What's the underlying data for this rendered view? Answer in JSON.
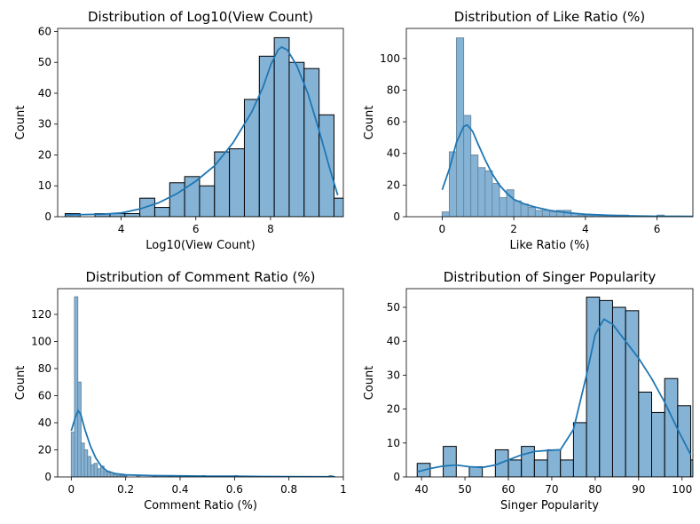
{
  "chart_data": [
    {
      "type": "bar",
      "title": "Distribution of Log10(View Count)",
      "xlabel": "Log10(View Count)",
      "ylabel": "Count",
      "xlim": [
        2.3,
        9.95
      ],
      "ylim": [
        0,
        61
      ],
      "xticks": [
        4,
        6,
        8,
        10
      ],
      "yticks": [
        0,
        10,
        20,
        30,
        40,
        50,
        60
      ],
      "bins": [
        {
          "x0": 2.5,
          "x1": 2.9,
          "count": 1
        },
        {
          "x0": 2.9,
          "x1": 3.3,
          "count": 0
        },
        {
          "x0": 3.3,
          "x1": 3.7,
          "count": 1
        },
        {
          "x0": 3.7,
          "x1": 4.1,
          "count": 1
        },
        {
          "x0": 4.1,
          "x1": 4.5,
          "count": 1
        },
        {
          "x0": 4.5,
          "x1": 4.9,
          "count": 6
        },
        {
          "x0": 4.9,
          "x1": 5.3,
          "count": 3
        },
        {
          "x0": 5.3,
          "x1": 5.7,
          "count": 11
        },
        {
          "x0": 5.7,
          "x1": 6.1,
          "count": 13
        },
        {
          "x0": 6.1,
          "x1": 6.5,
          "count": 10
        },
        {
          "x0": 6.5,
          "x1": 6.9,
          "count": 21
        },
        {
          "x0": 6.9,
          "x1": 7.3,
          "count": 22
        },
        {
          "x0": 7.3,
          "x1": 7.7,
          "count": 38
        },
        {
          "x0": 7.7,
          "x1": 8.1,
          "count": 52
        },
        {
          "x0": 8.1,
          "x1": 8.5,
          "count": 58
        },
        {
          "x0": 8.5,
          "x1": 8.9,
          "count": 50
        },
        {
          "x0": 8.9,
          "x1": 9.3,
          "count": 48
        },
        {
          "x0": 9.3,
          "x1": 9.7,
          "count": 33
        },
        {
          "x0": 9.7,
          "x1": 10.1,
          "count": 6
        }
      ],
      "kde": [
        [
          2.5,
          0.6
        ],
        [
          3.0,
          0.7
        ],
        [
          3.5,
          0.8
        ],
        [
          4.0,
          1.2
        ],
        [
          4.5,
          2.5
        ],
        [
          5.0,
          4.5
        ],
        [
          5.5,
          7.5
        ],
        [
          6.0,
          11.5
        ],
        [
          6.5,
          16.5
        ],
        [
          7.0,
          24
        ],
        [
          7.5,
          34
        ],
        [
          7.8,
          42
        ],
        [
          8.0,
          49
        ],
        [
          8.2,
          54
        ],
        [
          8.3,
          55
        ],
        [
          8.45,
          54
        ],
        [
          8.7,
          49
        ],
        [
          9.0,
          40
        ],
        [
          9.3,
          28
        ],
        [
          9.6,
          15
        ],
        [
          9.8,
          7
        ]
      ],
      "colors": {
        "bar_fill": "#85b3d6",
        "bar_edge": "#000000",
        "kde": "#1f77b4"
      }
    },
    {
      "type": "bar",
      "title": "Distribution of Like Ratio (%)",
      "xlabel": "Like Ratio (%)",
      "ylabel": "Count",
      "xlim": [
        -1.0,
        7.0
      ],
      "ylim": [
        0,
        119
      ],
      "xticks": [
        0,
        2,
        4,
        6
      ],
      "yticks": [
        0,
        20,
        40,
        60,
        80,
        100
      ],
      "bins": [
        {
          "x0": 0.0,
          "x1": 0.2,
          "count": 3
        },
        {
          "x0": 0.2,
          "x1": 0.4,
          "count": 41
        },
        {
          "x0": 0.4,
          "x1": 0.6,
          "count": 113
        },
        {
          "x0": 0.6,
          "x1": 0.8,
          "count": 64
        },
        {
          "x0": 0.8,
          "x1": 1.0,
          "count": 39
        },
        {
          "x0": 1.0,
          "x1": 1.2,
          "count": 31
        },
        {
          "x0": 1.2,
          "x1": 1.4,
          "count": 29
        },
        {
          "x0": 1.4,
          "x1": 1.6,
          "count": 21
        },
        {
          "x0": 1.6,
          "x1": 1.8,
          "count": 12
        },
        {
          "x0": 1.8,
          "x1": 2.0,
          "count": 17
        },
        {
          "x0": 2.0,
          "x1": 2.2,
          "count": 10
        },
        {
          "x0": 2.2,
          "x1": 2.4,
          "count": 8
        },
        {
          "x0": 2.4,
          "x1": 2.6,
          "count": 6
        },
        {
          "x0": 2.6,
          "x1": 2.8,
          "count": 4
        },
        {
          "x0": 2.8,
          "x1": 3.0,
          "count": 4
        },
        {
          "x0": 3.0,
          "x1": 3.2,
          "count": 3
        },
        {
          "x0": 3.2,
          "x1": 3.4,
          "count": 4
        },
        {
          "x0": 3.4,
          "x1": 3.6,
          "count": 4
        },
        {
          "x0": 3.6,
          "x1": 3.8,
          "count": 2
        },
        {
          "x0": 3.8,
          "x1": 4.0,
          "count": 1
        },
        {
          "x0": 4.0,
          "x1": 4.2,
          "count": 1
        },
        {
          "x0": 4.2,
          "x1": 4.4,
          "count": 1
        },
        {
          "x0": 4.4,
          "x1": 4.6,
          "count": 1
        },
        {
          "x0": 4.6,
          "x1": 4.8,
          "count": 1
        },
        {
          "x0": 4.8,
          "x1": 5.0,
          "count": 1
        },
        {
          "x0": 5.0,
          "x1": 5.2,
          "count": 1
        },
        {
          "x0": 5.2,
          "x1": 5.4,
          "count": 0
        },
        {
          "x0": 5.4,
          "x1": 5.6,
          "count": 0
        },
        {
          "x0": 5.6,
          "x1": 5.8,
          "count": 0
        },
        {
          "x0": 5.8,
          "x1": 6.0,
          "count": 0
        },
        {
          "x0": 6.0,
          "x1": 6.2,
          "count": 1
        }
      ],
      "kde": [
        [
          0.0,
          17
        ],
        [
          0.2,
          30
        ],
        [
          0.4,
          47
        ],
        [
          0.6,
          57
        ],
        [
          0.7,
          58
        ],
        [
          0.85,
          54
        ],
        [
          1.0,
          46
        ],
        [
          1.2,
          36
        ],
        [
          1.4,
          27
        ],
        [
          1.6,
          20
        ],
        [
          1.8,
          15
        ],
        [
          2.0,
          11
        ],
        [
          2.3,
          8
        ],
        [
          2.6,
          6
        ],
        [
          3.0,
          4
        ],
        [
          3.5,
          2.5
        ],
        [
          4.0,
          1.5
        ],
        [
          4.5,
          1
        ],
        [
          5.0,
          0.6
        ],
        [
          6.0,
          0.3
        ],
        [
          7.0,
          0.2
        ]
      ],
      "colors": {
        "bar_fill": "#85b3d6",
        "bar_edge": "#6a8aa0",
        "kde": "#1f77b4"
      }
    },
    {
      "type": "bar",
      "title": "Distribution of Comment Ratio (%)",
      "xlabel": "Comment Ratio (%)",
      "ylabel": "Count",
      "xlim": [
        -0.05,
        1.0
      ],
      "ylim": [
        0,
        139
      ],
      "xticks": [
        0.0,
        0.2,
        0.4,
        0.6,
        0.8,
        1.0
      ],
      "yticks": [
        0,
        20,
        40,
        60,
        80,
        100,
        120
      ],
      "bins": [
        {
          "x0": 0.0,
          "x1": 0.012,
          "count": 33
        },
        {
          "x0": 0.012,
          "x1": 0.024,
          "count": 133
        },
        {
          "x0": 0.024,
          "x1": 0.036,
          "count": 70
        },
        {
          "x0": 0.036,
          "x1": 0.048,
          "count": 25
        },
        {
          "x0": 0.048,
          "x1": 0.06,
          "count": 20
        },
        {
          "x0": 0.06,
          "x1": 0.072,
          "count": 15
        },
        {
          "x0": 0.072,
          "x1": 0.084,
          "count": 9
        },
        {
          "x0": 0.084,
          "x1": 0.096,
          "count": 10
        },
        {
          "x0": 0.096,
          "x1": 0.108,
          "count": 6
        },
        {
          "x0": 0.108,
          "x1": 0.12,
          "count": 8
        },
        {
          "x0": 0.12,
          "x1": 0.132,
          "count": 4
        },
        {
          "x0": 0.132,
          "x1": 0.144,
          "count": 3
        },
        {
          "x0": 0.144,
          "x1": 0.156,
          "count": 2
        },
        {
          "x0": 0.156,
          "x1": 0.168,
          "count": 2
        },
        {
          "x0": 0.168,
          "x1": 0.18,
          "count": 1
        },
        {
          "x0": 0.18,
          "x1": 0.192,
          "count": 1
        },
        {
          "x0": 0.192,
          "x1": 0.204,
          "count": 1
        },
        {
          "x0": 0.24,
          "x1": 0.252,
          "count": 1
        },
        {
          "x0": 0.3,
          "x1": 0.312,
          "count": 1
        },
        {
          "x0": 0.36,
          "x1": 0.372,
          "count": 1
        },
        {
          "x0": 0.42,
          "x1": 0.432,
          "count": 1
        },
        {
          "x0": 0.48,
          "x1": 0.492,
          "count": 1
        },
        {
          "x0": 0.6,
          "x1": 0.612,
          "count": 1
        },
        {
          "x0": 0.948,
          "x1": 0.96,
          "count": 1
        }
      ],
      "kde": [
        [
          0.0,
          34
        ],
        [
          0.015,
          44
        ],
        [
          0.025,
          49
        ],
        [
          0.035,
          46
        ],
        [
          0.05,
          35
        ],
        [
          0.07,
          23
        ],
        [
          0.09,
          14
        ],
        [
          0.11,
          8
        ],
        [
          0.13,
          4.5
        ],
        [
          0.16,
          2.5
        ],
        [
          0.2,
          1.5
        ],
        [
          0.3,
          1
        ],
        [
          0.4,
          0.8
        ],
        [
          0.5,
          0.6
        ],
        [
          0.6,
          0.5
        ],
        [
          0.7,
          0.3
        ],
        [
          0.8,
          0.2
        ],
        [
          0.97,
          0.1
        ]
      ],
      "colors": {
        "bar_fill": "#85b3d6",
        "bar_edge": "#6a8aa0",
        "kde": "#1f77b4"
      }
    },
    {
      "type": "bar",
      "title": "Distribution of Singer Popularity",
      "xlabel": "Singer Popularity",
      "ylabel": "Count",
      "xlim": [
        36.5,
        102.5
      ],
      "ylim": [
        0,
        55.5
      ],
      "xticks": [
        40,
        50,
        60,
        70,
        80,
        90,
        100
      ],
      "yticks": [
        0,
        10,
        20,
        30,
        40,
        50
      ],
      "bins": [
        {
          "x0": 39.0,
          "x1": 42.0,
          "count": 4
        },
        {
          "x0": 42.0,
          "x1": 45.0,
          "count": 0
        },
        {
          "x0": 45.0,
          "x1": 48.0,
          "count": 9
        },
        {
          "x0": 48.0,
          "x1": 51.0,
          "count": 0
        },
        {
          "x0": 51.0,
          "x1": 54.0,
          "count": 3
        },
        {
          "x0": 54.0,
          "x1": 57.0,
          "count": 0
        },
        {
          "x0": 57.0,
          "x1": 60.0,
          "count": 8
        },
        {
          "x0": 60.0,
          "x1": 63.0,
          "count": 5
        },
        {
          "x0": 63.0,
          "x1": 66.0,
          "count": 9
        },
        {
          "x0": 66.0,
          "x1": 69.0,
          "count": 5
        },
        {
          "x0": 69.0,
          "x1": 72.0,
          "count": 8
        },
        {
          "x0": 72.0,
          "x1": 75.0,
          "count": 5
        },
        {
          "x0": 75.0,
          "x1": 78.0,
          "count": 16
        },
        {
          "x0": 78.0,
          "x1": 81.0,
          "count": 53
        },
        {
          "x0": 81.0,
          "x1": 84.0,
          "count": 52
        },
        {
          "x0": 84.0,
          "x1": 87.0,
          "count": 50
        },
        {
          "x0": 87.0,
          "x1": 90.0,
          "count": 49
        },
        {
          "x0": 90.0,
          "x1": 93.0,
          "count": 25
        },
        {
          "x0": 93.0,
          "x1": 96.0,
          "count": 19
        },
        {
          "x0": 96.0,
          "x1": 99.0,
          "count": 29
        },
        {
          "x0": 99.0,
          "x1": 102.0,
          "count": 21
        },
        {
          "x0": 102.0,
          "x1": 105.0,
          "count": 5
        }
      ],
      "kde": [
        [
          39,
          1.5
        ],
        [
          42,
          2.5
        ],
        [
          45,
          3.2
        ],
        [
          48,
          3.5
        ],
        [
          51,
          3
        ],
        [
          54,
          2.8
        ],
        [
          57,
          3.5
        ],
        [
          60,
          5
        ],
        [
          63,
          6.5
        ],
        [
          66,
          7.5
        ],
        [
          69,
          7.8
        ],
        [
          72,
          8
        ],
        [
          75,
          14
        ],
        [
          78,
          30
        ],
        [
          80,
          42
        ],
        [
          82,
          46.5
        ],
        [
          84,
          45
        ],
        [
          87,
          40
        ],
        [
          90,
          35
        ],
        [
          93,
          29
        ],
        [
          96,
          22
        ],
        [
          99,
          14
        ],
        [
          102,
          6.5
        ]
      ],
      "colors": {
        "bar_fill": "#85b3d6",
        "bar_edge": "#000000",
        "kde": "#1f77b4"
      }
    }
  ]
}
